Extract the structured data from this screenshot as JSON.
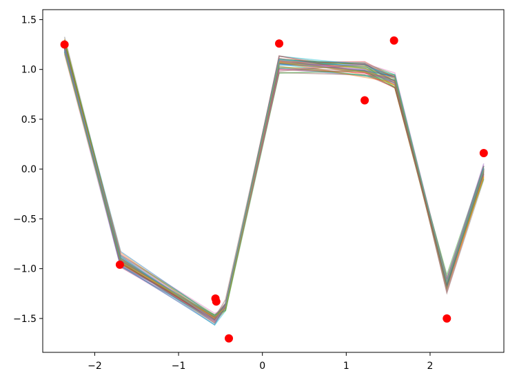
{
  "chart_data": {
    "type": "line",
    "title": "",
    "xlabel": "",
    "ylabel": "",
    "xlim": [
      -2.62,
      2.88
    ],
    "ylim": [
      -1.84,
      1.6
    ],
    "grid": false,
    "legend": "none",
    "x_ticks": [
      {
        "value": -2,
        "label": "−2"
      },
      {
        "value": -1,
        "label": "−1"
      },
      {
        "value": 0,
        "label": "0"
      },
      {
        "value": 1,
        "label": "1"
      },
      {
        "value": 2,
        "label": "2"
      }
    ],
    "y_ticks": [
      {
        "value": 1.5,
        "label": "1.5"
      },
      {
        "value": 1.0,
        "label": "1.0"
      },
      {
        "value": 0.5,
        "label": "0.5"
      },
      {
        "value": 0.0,
        "label": "0.0"
      },
      {
        "value": -0.5,
        "label": "−0.5"
      },
      {
        "value": -1.0,
        "label": "−1.0"
      },
      {
        "value": -1.5,
        "label": "−1.5"
      }
    ],
    "line_x": [
      -2.36,
      -1.69,
      -0.57,
      -0.44,
      0.2,
      1.22,
      1.58,
      2.2,
      2.64
    ],
    "line_center": [
      1.23,
      -0.92,
      -1.5,
      -1.38,
      1.06,
      0.99,
      0.88,
      -1.15,
      -0.02
    ],
    "line_series_count": 40,
    "line_colors": [
      "#1f77b4",
      "#ff7f0e",
      "#2ca02c",
      "#d62728",
      "#9467bd",
      "#8c564b",
      "#e377c2",
      "#7f7f7f",
      "#bcbd22",
      "#17becf"
    ],
    "line_alpha": 0.45,
    "scatter": {
      "color": "#ff0000",
      "points": [
        {
          "x": -2.36,
          "y": 1.25
        },
        {
          "x": -1.7,
          "y": -0.96
        },
        {
          "x": -0.56,
          "y": -1.3
        },
        {
          "x": -0.55,
          "y": -1.33
        },
        {
          "x": -0.4,
          "y": -1.7
        },
        {
          "x": 0.2,
          "y": 1.26
        },
        {
          "x": 1.22,
          "y": 0.69
        },
        {
          "x": 1.57,
          "y": 1.29
        },
        {
          "x": 2.2,
          "y": -1.5
        },
        {
          "x": 2.64,
          "y": 0.16
        }
      ]
    }
  }
}
